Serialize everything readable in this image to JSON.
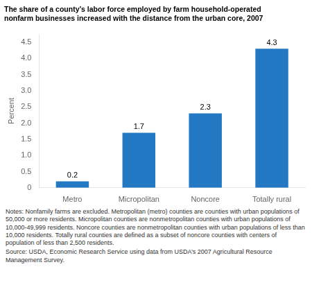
{
  "chart_data": {
    "type": "bar",
    "title": [
      "The share of a county’s labor force employed by farm household-operated",
      "nonfarm businesses increased with the distance from the urban core, 2007"
    ],
    "ylabel": "Percent",
    "categories": [
      "Metro",
      "Micropolitan",
      "Noncore",
      "Totally rural"
    ],
    "values": [
      0.2,
      1.7,
      2.3,
      4.3
    ],
    "color": "#2278c3",
    "ylim": [
      0,
      4.75
    ],
    "yticks": [
      0,
      0.5,
      {
        "value": 1.0,
        "label": "1.0"
      },
      1.5,
      {
        "value": 2.0,
        "label": "2.0"
      },
      2.5,
      {
        "value": 3.0,
        "label": "3.0"
      },
      3.5,
      {
        "value": 4.0,
        "label": "4.0"
      },
      4.5
    ],
    "grid": false,
    "legend": false,
    "data_labels": true,
    "annotations": [
      "Notes: Nonfamily farms are excluded. Metropolitan (metro) counties are counties with urban populations of 50,000 or more residents. Micropolitan counties are nonmetropolitan counties with urban populations of 10,000-49,999 residents. Noncore counties are nonmetropolitan counties with urban populations of less than 10,000 residents. Totally rural counties are defined as a subset of noncore counties with centers of population of less than 2,500 residents.",
      "Source: USDA, Economic Research Service using data from USDA’s 2007 Agricultural Resource Management Survey."
    ]
  }
}
